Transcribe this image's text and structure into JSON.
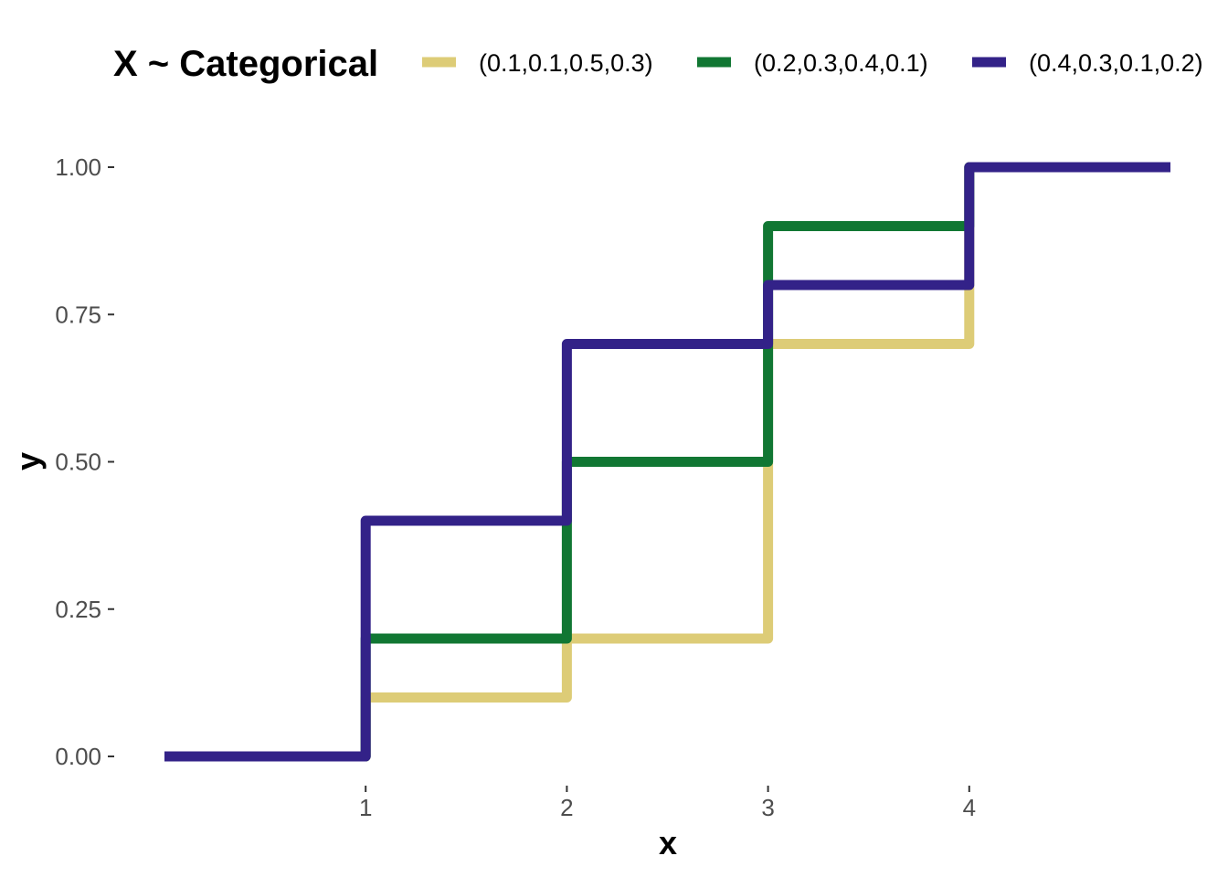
{
  "chart_data": {
    "type": "line",
    "step": true,
    "legend_title": "X ~ Categorical",
    "legend_position": "top",
    "xlabel": "x",
    "ylabel": "y",
    "xlim": [
      0,
      5
    ],
    "ylim": [
      0,
      1
    ],
    "x_ticks": [
      1,
      2,
      3,
      4
    ],
    "x_tick_labels": [
      "1",
      "2",
      "3",
      "4"
    ],
    "y_ticks": [
      0,
      0.25,
      0.5,
      0.75,
      1.0
    ],
    "y_tick_labels": [
      "0.00",
      "0.25",
      "0.50",
      "0.75",
      "1.00"
    ],
    "grid": false,
    "series": [
      {
        "name": "(0.1,0.1,0.5,0.3)",
        "color": "#DDCC77",
        "x": [
          0,
          1,
          2,
          3,
          4,
          5
        ],
        "y": [
          0,
          0.1,
          0.2,
          0.7,
          1.0,
          1.0
        ]
      },
      {
        "name": "(0.2,0.3,0.4,0.1)",
        "color": "#117733",
        "x": [
          0,
          1,
          2,
          3,
          4,
          5
        ],
        "y": [
          0,
          0.2,
          0.5,
          0.9,
          1.0,
          1.0
        ]
      },
      {
        "name": "(0.4,0.3,0.1,0.2)",
        "color": "#332288",
        "x": [
          0,
          1,
          2,
          3,
          4,
          5
        ],
        "y": [
          0,
          0.4,
          0.7,
          0.8,
          1.0,
          1.0
        ]
      }
    ]
  }
}
